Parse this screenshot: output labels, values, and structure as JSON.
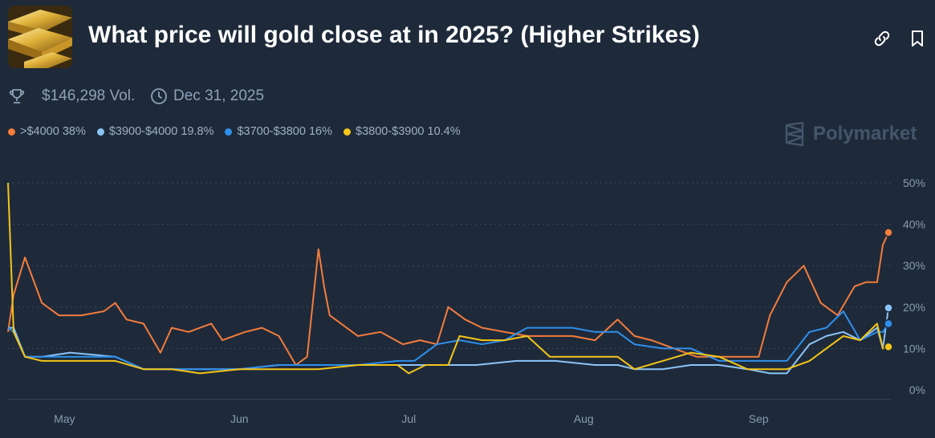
{
  "header": {
    "title": "What price will gold close at in 2025? (Higher Strikes)",
    "volume": "$146,298 Vol.",
    "end_date": "Dec 31, 2025",
    "brand": "Polymarket"
  },
  "icons": {
    "thumbnail": "gold-bars-image",
    "link": "link-icon",
    "bookmark": "bookmark-icon",
    "volume": "trophy-icon",
    "date": "clock-icon",
    "brand": "polymarket-logo-icon"
  },
  "colors": {
    "background": "#1e2a3a",
    "orange": "#f47c3c",
    "light_blue": "#8cc4f7",
    "blue": "#2f8fec",
    "yellow": "#f5c518",
    "grid": "#3a4a5c"
  },
  "legend": [
    {
      "label": ">$4000 38%",
      "color": "#f47c3c"
    },
    {
      "label": "$3900-$4000 19.8%",
      "color": "#8cc4f7"
    },
    {
      "label": "$3700-$3800 16%",
      "color": "#2f8fec"
    },
    {
      "label": "$3800-$3900 10.4%",
      "color": "#f5c518"
    }
  ],
  "chart_data": {
    "type": "line",
    "x_tick_labels": [
      "May",
      "Jun",
      "Jul",
      "Aug",
      "Sep"
    ],
    "y_tick_labels": [
      "50%",
      "40%",
      "30%",
      "20%",
      "10%",
      "0%"
    ],
    "ylim": [
      0,
      50
    ],
    "grid": true,
    "legend_position": "top-left",
    "series": [
      {
        "name": ">$4000",
        "color": "#f47c3c",
        "x": [
          "Apr 21",
          "Apr 22",
          "Apr 24",
          "Apr 27",
          "Apr 30",
          "May 4",
          "May 8",
          "May 10",
          "May 12",
          "May 15",
          "May 18",
          "May 20",
          "May 23",
          "May 27",
          "May 29",
          "Jun 2",
          "Jun 5",
          "Jun 8",
          "Jun 11",
          "Jun 13",
          "Jun 15",
          "Jun 16",
          "Jun 17",
          "Jun 19",
          "Jun 22",
          "Jun 26",
          "Jun 30",
          "Jul 3",
          "Jul 6",
          "Jul 8",
          "Jul 11",
          "Jul 14",
          "Jul 18",
          "Jul 22",
          "Jul 26",
          "Jul 30",
          "Aug 3",
          "Aug 7",
          "Aug 10",
          "Aug 13",
          "Aug 17",
          "Aug 21",
          "Aug 25",
          "Aug 29",
          "Sep 1",
          "Sep 3",
          "Sep 6",
          "Sep 9",
          "Sep 12",
          "Sep 15",
          "Sep 18",
          "Sep 20",
          "Sep 22",
          "Sep 23",
          "Sep 24"
        ],
        "values": [
          14,
          23,
          32,
          21,
          18,
          18,
          19,
          21,
          17,
          16,
          9,
          15,
          14,
          16,
          12,
          14,
          15,
          13,
          6,
          8,
          34,
          25,
          18,
          16,
          13,
          14,
          11,
          12,
          11,
          20,
          17,
          15,
          14,
          13,
          13,
          13,
          12,
          17,
          13,
          12,
          10,
          8,
          8,
          8,
          8,
          18,
          26,
          30,
          21,
          18,
          25,
          26,
          26,
          35,
          38
        ]
      },
      {
        "name": "$3900-$4000",
        "color": "#8cc4f7",
        "x": [
          "Apr 21",
          "Apr 22",
          "Apr 24",
          "Apr 27",
          "May 2",
          "May 10",
          "May 15",
          "May 20",
          "May 25",
          "Jun 1",
          "Jun 8",
          "Jun 15",
          "Jun 22",
          "Jun 29",
          "Jul 6",
          "Jul 13",
          "Jul 20",
          "Jul 27",
          "Aug 3",
          "Aug 7",
          "Aug 10",
          "Aug 15",
          "Aug 20",
          "Aug 25",
          "Aug 30",
          "Sep 3",
          "Sep 6",
          "Sep 10",
          "Sep 13",
          "Sep 16",
          "Sep 19",
          "Sep 22",
          "Sep 23",
          "Sep 24"
        ],
        "values": [
          15,
          15,
          8,
          8,
          9,
          8,
          5,
          5,
          5,
          5,
          6,
          6,
          6,
          6,
          6,
          6,
          7,
          7,
          6,
          6,
          5,
          5,
          6,
          6,
          5,
          4,
          4,
          11,
          13,
          14,
          12,
          15,
          10,
          19.8
        ]
      },
      {
        "name": "$3700-$3800",
        "color": "#2f8fec",
        "x": [
          "Apr 21",
          "Apr 22",
          "Apr 24",
          "Apr 27",
          "May 2",
          "May 10",
          "May 15",
          "May 20",
          "May 25",
          "Jun 1",
          "Jun 8",
          "Jun 15",
          "Jun 22",
          "Jun 29",
          "Jul 2",
          "Jul 6",
          "Jul 10",
          "Jul 14",
          "Jul 18",
          "Jul 22",
          "Jul 26",
          "Jul 30",
          "Aug 3",
          "Aug 7",
          "Aug 10",
          "Aug 15",
          "Aug 20",
          "Aug 25",
          "Aug 30",
          "Sep 3",
          "Sep 6",
          "Sep 10",
          "Sep 13",
          "Sep 16",
          "Sep 19",
          "Sep 22",
          "Sep 23",
          "Sep 24"
        ],
        "values": [
          15,
          14,
          8,
          8,
          8,
          8,
          5,
          5,
          5,
          5,
          6,
          6,
          6,
          7,
          7,
          11,
          12,
          11,
          12,
          15,
          15,
          15,
          14,
          14,
          11,
          10,
          10,
          7,
          7,
          7,
          7,
          14,
          15,
          19,
          12,
          14,
          14,
          16
        ]
      },
      {
        "name": "$3800-$3900",
        "color": "#f5c518",
        "x": [
          "Apr 21",
          "Apr 22",
          "Apr 24",
          "Apr 27",
          "May 2",
          "May 10",
          "May 15",
          "May 20",
          "May 25",
          "Jun 1",
          "Jun 8",
          "Jun 15",
          "Jun 22",
          "Jun 29",
          "Jul 1",
          "Jul 4",
          "Jul 8",
          "Jul 10",
          "Jul 14",
          "Jul 18",
          "Jul 22",
          "Jul 26",
          "Jul 30",
          "Aug 3",
          "Aug 7",
          "Aug 10",
          "Aug 15",
          "Aug 20",
          "Aug 25",
          "Aug 30",
          "Sep 3",
          "Sep 6",
          "Sep 10",
          "Sep 13",
          "Sep 16",
          "Sep 19",
          "Sep 22",
          "Sep 23",
          "Sep 24"
        ],
        "values": [
          50,
          14,
          8,
          7,
          7,
          7,
          5,
          5,
          4,
          5,
          5,
          5,
          6,
          6,
          4,
          6,
          6,
          13,
          12,
          12,
          13,
          8,
          8,
          8,
          8,
          5,
          7,
          9,
          8,
          5,
          5,
          5,
          7,
          10,
          13,
          12,
          16,
          10,
          10.4
        ]
      }
    ]
  }
}
